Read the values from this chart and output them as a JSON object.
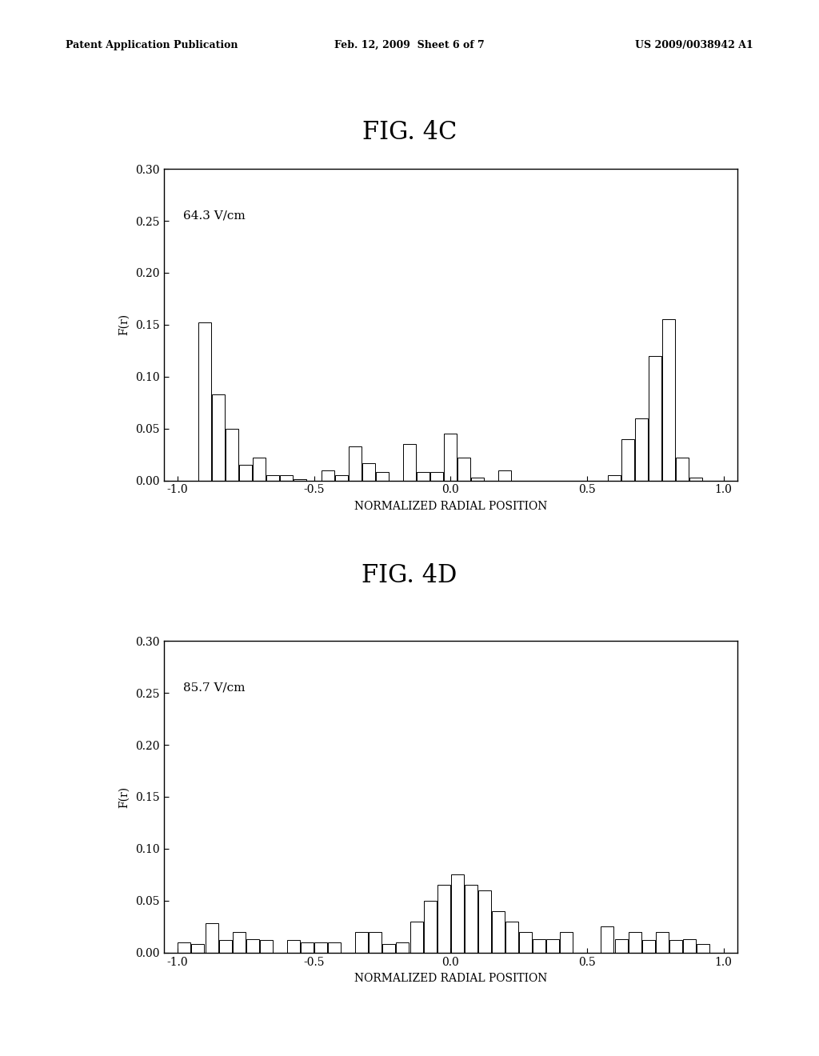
{
  "fig4c_label": "FIG. 4C",
  "fig4d_label": "FIG. 4D",
  "annotation_4c": "64.3 V/cm",
  "annotation_4d": "85.7 V/cm",
  "ylabel": "F(r)",
  "xlabel": "NORMALIZED RADIAL POSITION",
  "ylim": [
    0,
    0.3
  ],
  "yticks": [
    0.0,
    0.05,
    0.1,
    0.15,
    0.2,
    0.25,
    0.3
  ],
  "xlim": [
    -1.0,
    1.0
  ],
  "xticks": [
    -1.0,
    -0.5,
    0.0,
    0.5,
    1.0
  ],
  "header_left": "Patent Application Publication",
  "header_mid": "Feb. 12, 2009  Sheet 6 of 7",
  "header_right": "US 2009/0038942 A1",
  "bar_width": 0.047,
  "fig4c_bars": {
    "positions": [
      -0.9,
      -0.85,
      -0.8,
      -0.75,
      -0.7,
      -0.65,
      -0.6,
      -0.55,
      -0.45,
      -0.4,
      -0.35,
      -0.3,
      -0.25,
      -0.15,
      -0.1,
      -0.05,
      0.0,
      0.05,
      0.1,
      0.15,
      0.2,
      0.6,
      0.65,
      0.7,
      0.75,
      0.8,
      0.85,
      0.9,
      0.95
    ],
    "values": [
      0.152,
      0.083,
      0.05,
      0.015,
      0.022,
      0.005,
      0.005,
      0.001,
      0.01,
      0.005,
      0.033,
      0.017,
      0.008,
      0.035,
      0.008,
      0.008,
      0.045,
      0.022,
      0.003,
      0.0,
      0.01,
      0.005,
      0.04,
      0.06,
      0.12,
      0.155,
      0.022,
      0.003,
      0.0
    ]
  },
  "fig4d_bars": {
    "positions": [
      -0.975,
      -0.925,
      -0.875,
      -0.825,
      -0.775,
      -0.725,
      -0.675,
      -0.575,
      -0.525,
      -0.475,
      -0.425,
      -0.325,
      -0.275,
      -0.225,
      -0.175,
      -0.125,
      -0.075,
      -0.025,
      0.025,
      0.075,
      0.125,
      0.175,
      0.225,
      0.275,
      0.325,
      0.375,
      0.425,
      0.575,
      0.625,
      0.675,
      0.725,
      0.775,
      0.825,
      0.875,
      0.925
    ],
    "values": [
      0.01,
      0.008,
      0.028,
      0.012,
      0.02,
      0.013,
      0.012,
      0.012,
      0.01,
      0.01,
      0.01,
      0.02,
      0.02,
      0.008,
      0.01,
      0.03,
      0.05,
      0.065,
      0.075,
      0.065,
      0.06,
      0.04,
      0.03,
      0.02,
      0.013,
      0.013,
      0.02,
      0.025,
      0.013,
      0.02,
      0.012,
      0.02,
      0.012,
      0.013,
      0.008
    ]
  },
  "background_color": "#ffffff",
  "bar_color": "#ffffff",
  "bar_edge_color": "#000000",
  "text_color": "#000000",
  "header_fontsize": 9,
  "title_fontsize": 22,
  "tick_fontsize": 10,
  "label_fontsize": 10,
  "annotation_fontsize": 11
}
